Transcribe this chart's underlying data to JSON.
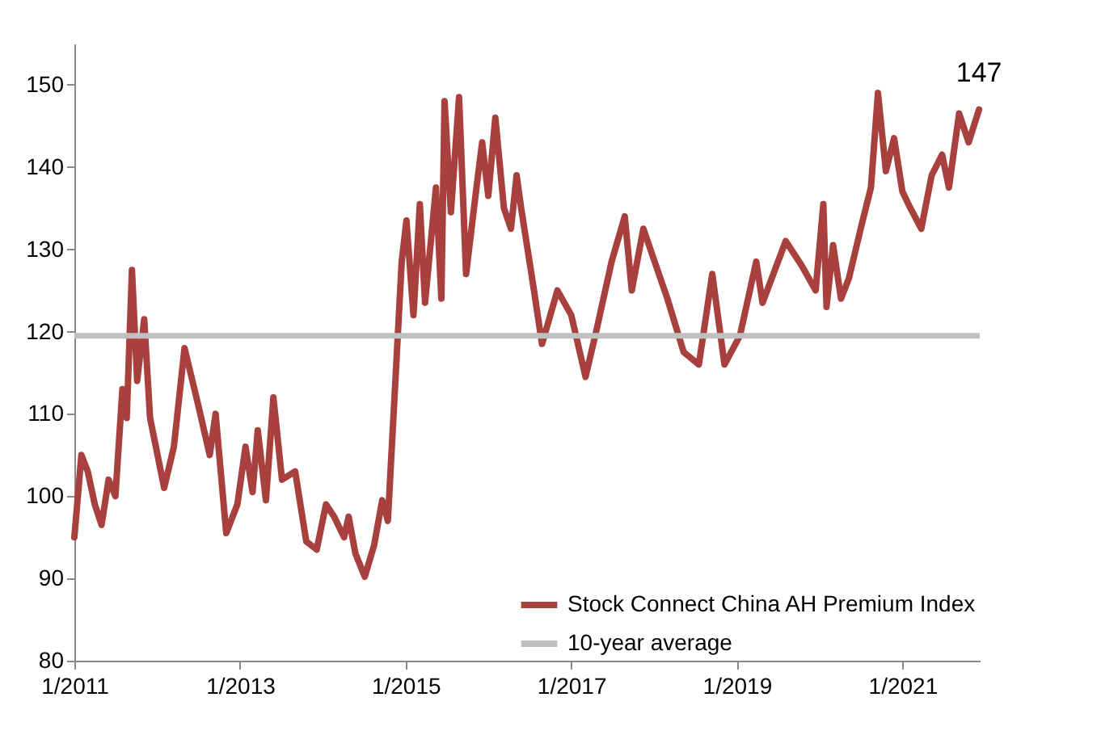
{
  "chart_data": {
    "type": "line",
    "x": [
      "2011-01",
      "2011-02",
      "2011-03",
      "2011-04",
      "2011-05",
      "2011-06",
      "2011-07",
      "2011-08",
      "2011-08-20",
      "2011-09-12",
      "2011-10-05",
      "2011-11-05",
      "2011-12",
      "2012-02",
      "2012-03-15",
      "2012-05",
      "2012-07",
      "2012-08-20",
      "2012-09-15",
      "2012-11",
      "2012-12-20",
      "2013-01-25",
      "2013-02-25",
      "2013-03-20",
      "2013-04-25",
      "2013-05-28",
      "2013-07-05",
      "2013-09",
      "2013-10-20",
      "2013-12-05",
      "2014-01-15",
      "2014-02-20",
      "2014-04-05",
      "2014-04-25",
      "2014-05-25",
      "2014-07-05",
      "2014-08-15",
      "2014-09-20",
      "2014-10-15",
      "2014-11-20",
      "2014-12-15",
      "2015-01-05",
      "2015-02-05",
      "2015-03-05",
      "2015-03-28",
      "2015-05-15",
      "2015-06-08",
      "2015-06-22",
      "2015-07-20",
      "2015-08-25",
      "2015-09-25",
      "2015-11-12",
      "2015-12-05",
      "2016-01-01",
      "2016-02-01",
      "2016-03-10",
      "2016-04-10",
      "2016-05-05",
      "2016-05-25",
      "2016-07-15",
      "2016-08-25",
      "2016-11-01",
      "2017-01-01",
      "2017-03-05",
      "2017-04-25",
      "2017-06-28",
      "2017-08-25",
      "2017-09-25",
      "2017-11-15",
      "2018-03-01",
      "2018-05-12",
      "2018-07-18",
      "2018-09-15",
      "2018-11-08",
      "2019-01-15",
      "2019-03-28",
      "2019-04-25",
      "2019-08-05",
      "2019-10-15",
      "2019-12-15",
      "2020-01-18",
      "2020-02-01",
      "2020-03-01",
      "2020-04-05",
      "2020-05-10",
      "2020-07-05",
      "2020-08-15",
      "2020-09-15",
      "2020-10-20",
      "2020-11-25",
      "2021-01-01",
      "2021-02-05",
      "2021-03-25",
      "2021-05-10",
      "2021-06-25",
      "2021-07-25",
      "2021-09-08",
      "2021-10-20",
      "2021-12-05"
    ],
    "series": [
      {
        "name": "Stock Connect China AH Premium Index",
        "color": "#a8403e",
        "values": [
          95,
          105,
          103,
          99,
          96.5,
          102,
          100,
          113,
          109.5,
          127.5,
          114,
          121.5,
          109.5,
          101,
          106,
          118,
          111,
          105,
          110,
          95.5,
          99,
          106,
          100.5,
          108,
          99.5,
          112,
          102,
          103,
          94.5,
          93.5,
          99,
          97.5,
          95,
          97.5,
          93,
          90.2,
          94,
          99.5,
          97,
          115.5,
          128.5,
          133.5,
          122,
          135.5,
          123.5,
          137.5,
          124,
          148,
          134.5,
          148.5,
          127,
          138,
          143,
          136.5,
          146,
          135,
          132.5,
          139,
          135,
          126,
          118.5,
          125,
          122,
          114.5,
          120.5,
          128.5,
          134,
          125,
          132.5,
          124,
          117.5,
          116,
          127,
          116,
          119.5,
          128.5,
          123.5,
          131,
          128,
          125,
          135.5,
          123,
          130.5,
          124,
          126.5,
          133,
          137.5,
          149,
          139.5,
          143.5,
          137,
          135,
          132.5,
          139,
          141.5,
          137.5,
          146.5,
          143,
          147
        ]
      }
    ],
    "xlim": [
      "2011-01",
      "2021-12-08"
    ],
    "xticks": [
      {
        "value": "2011-01",
        "label": "1/2011"
      },
      {
        "value": "2013-01",
        "label": "1/2013"
      },
      {
        "value": "2015-01",
        "label": "1/2015"
      },
      {
        "value": "2017-01",
        "label": "1/2017"
      },
      {
        "value": "2019-01",
        "label": "1/2019"
      },
      {
        "value": "2021-01",
        "label": "1/2021"
      }
    ],
    "ylim": [
      80,
      155
    ],
    "yticks": [
      80,
      90,
      100,
      110,
      120,
      130,
      140,
      150
    ],
    "ref_lines": [
      {
        "axis": "y",
        "value": 119.5,
        "label": "10-year average",
        "color": "#c0c0c0"
      }
    ],
    "annotations": [
      {
        "text": "147",
        "x": "2021-12-05",
        "y": 147
      }
    ],
    "legend": "bottom right"
  }
}
